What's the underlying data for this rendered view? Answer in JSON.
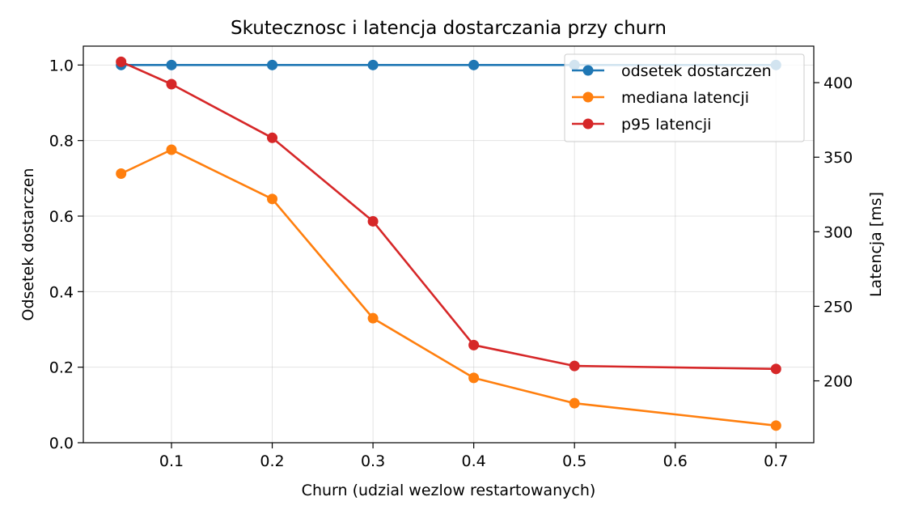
{
  "chart_data": {
    "type": "line",
    "title": "Skutecznosc i latencja dostarczania przy churn",
    "xlabel": "Churn (udzial wezlow restartowanych)",
    "ylabel_left": "Odsetek dostarczen",
    "ylabel_right": "Latencja [ms]",
    "x": [
      0.05,
      0.1,
      0.2,
      0.3,
      0.4,
      0.5,
      0.7
    ],
    "xlim": [
      0.0125,
      0.7375
    ],
    "xticks": [
      0.1,
      0.2,
      0.3,
      0.4,
      0.5,
      0.6,
      0.7
    ],
    "xtick_labels": [
      "0.1",
      "0.2",
      "0.3",
      "0.4",
      "0.5",
      "0.6",
      "0.7"
    ],
    "ylim_left": [
      0.0,
      1.05
    ],
    "yticks_left": [
      0.0,
      0.2,
      0.4,
      0.6,
      0.8,
      1.0
    ],
    "ytick_labels_left": [
      "0.0",
      "0.2",
      "0.4",
      "0.6",
      "0.8",
      "1.0"
    ],
    "ylim_right": [
      158.5,
      424.5
    ],
    "yticks_right": [
      200,
      250,
      300,
      350,
      400
    ],
    "ytick_labels_right": [
      "200",
      "250",
      "300",
      "350",
      "400"
    ],
    "grid": true,
    "legend_position": "top-right",
    "series": [
      {
        "name": "odsetek dostarczen",
        "axis": "left",
        "color": "#1f77b4",
        "values": [
          1.0,
          1.0,
          1.0,
          1.0,
          1.0,
          1.0,
          1.0
        ]
      },
      {
        "name": "mediana latencji",
        "axis": "right",
        "color": "#ff7f0e",
        "values": [
          339,
          355,
          322,
          242,
          202,
          185,
          170
        ]
      },
      {
        "name": "p95 latencji",
        "axis": "right",
        "color": "#d62728",
        "values": [
          414,
          399,
          363,
          307,
          224,
          210,
          208
        ]
      }
    ]
  }
}
